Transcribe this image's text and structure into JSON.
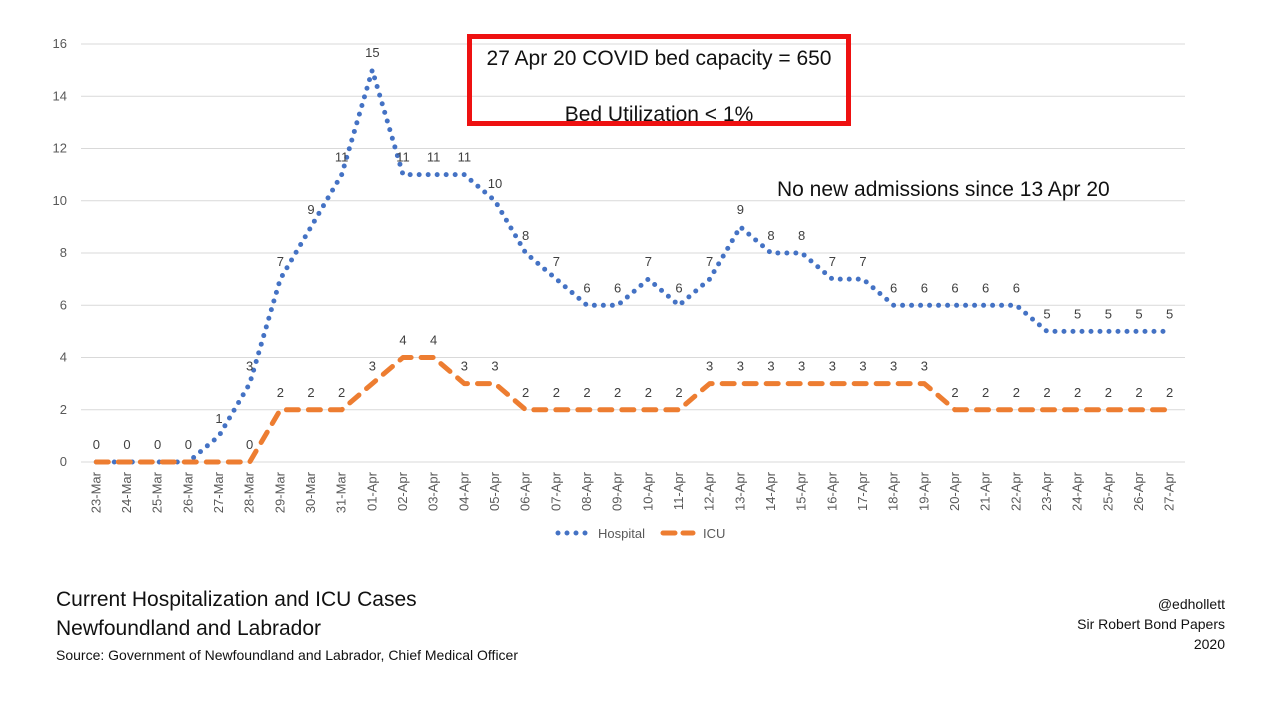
{
  "chart_data": {
    "type": "line",
    "categories": [
      "23-Mar",
      "24-Mar",
      "25-Mar",
      "26-Mar",
      "27-Mar",
      "28-Mar",
      "29-Mar",
      "30-Mar",
      "31-Mar",
      "01-Apr",
      "02-Apr",
      "03-Apr",
      "04-Apr",
      "05-Apr",
      "06-Apr",
      "07-Apr",
      "08-Apr",
      "09-Apr",
      "10-Apr",
      "11-Apr",
      "12-Apr",
      "13-Apr",
      "14-Apr",
      "15-Apr",
      "16-Apr",
      "17-Apr",
      "18-Apr",
      "19-Apr",
      "20-Apr",
      "21-Apr",
      "22-Apr",
      "23-Apr",
      "24-Apr",
      "25-Apr",
      "26-Apr",
      "27-Apr"
    ],
    "series": [
      {
        "name": "Hospital",
        "color": "#4472c4",
        "style": "dotted",
        "values": [
          0,
          0,
          0,
          0,
          1,
          3,
          7,
          9,
          11,
          15,
          11,
          11,
          11,
          10,
          8,
          7,
          6,
          6,
          7,
          6,
          7,
          9,
          8,
          8,
          7,
          7,
          6,
          6,
          6,
          6,
          6,
          5,
          5,
          5,
          5,
          5
        ],
        "labels": [
          "0",
          "0",
          "0",
          "0",
          "1",
          "3",
          "7",
          "9",
          "11",
          "15",
          "11",
          "11",
          "11",
          "10",
          "8",
          "7",
          "6",
          "6",
          "7",
          "6",
          "7",
          "9",
          "8",
          "8",
          "7",
          "7",
          "6",
          "6",
          "6",
          "6",
          "6",
          "5",
          "5",
          "5",
          "5",
          "5"
        ]
      },
      {
        "name": "ICU",
        "color": "#ed7d31",
        "style": "dashed",
        "values": [
          0,
          0,
          0,
          0,
          0,
          0,
          2,
          2,
          2,
          3,
          4,
          4,
          3,
          3,
          2,
          2,
          2,
          2,
          2,
          2,
          3,
          3,
          3,
          3,
          3,
          3,
          3,
          3,
          2,
          2,
          2,
          2,
          2,
          2,
          2,
          2
        ],
        "labels": [
          "",
          "",
          "",
          "",
          "",
          "0",
          "2",
          "2",
          "2",
          "3",
          "4",
          "4",
          "3",
          "3",
          "2",
          "2",
          "2",
          "2",
          "2",
          "2",
          "3",
          "3",
          "3",
          "3",
          "3",
          "3",
          "3",
          "3",
          "2",
          "2",
          "2",
          "2",
          "2",
          "2",
          "2",
          "2"
        ]
      }
    ],
    "yticks": [
      "0",
      "2",
      "4",
      "6",
      "8",
      "10",
      "12",
      "14",
      "16"
    ],
    "ylim": [
      0,
      16
    ],
    "grid": true,
    "legend": "bottom",
    "title": "",
    "xlabel": "",
    "ylabel": ""
  },
  "callout": {
    "line1": "27 Apr 20 COVID bed capacity = 650",
    "line2": "Bed Utilization < 1%",
    "border_color": "#ee1111"
  },
  "note": "No new admissions since 13 Apr 20",
  "caption": {
    "title1": "Current Hospitalization and ICU Cases",
    "title2": "Newfoundland and Labrador",
    "source": "Source:  Government of Newfoundland and Labrador, Chief Medical Officer"
  },
  "credits": {
    "handle": "@edhollett",
    "org": "Sir Robert Bond Papers",
    "year": "2020"
  }
}
